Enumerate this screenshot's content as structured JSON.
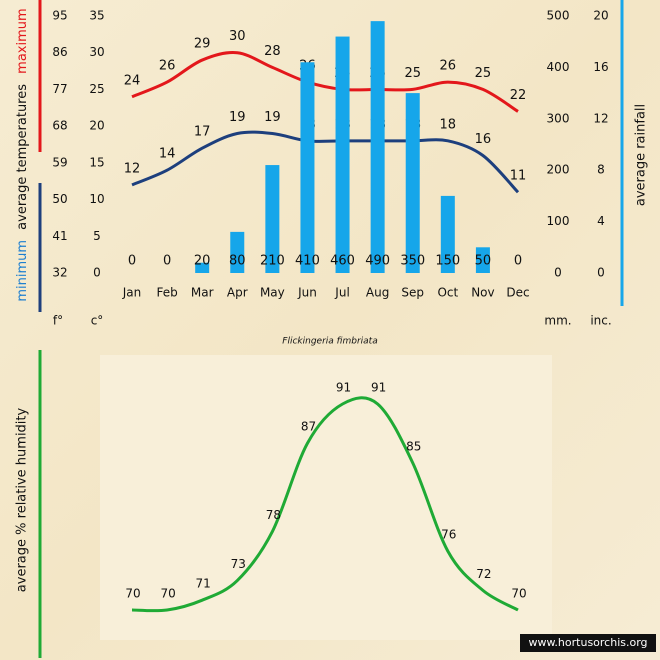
{
  "chart_data": [
    {
      "type": "climate",
      "title": "Flickingeria fimbriata",
      "ylabel": "average temperatures",
      "categories": [
        "Jan",
        "Feb",
        "Mar",
        "Apr",
        "May",
        "Jun",
        "Jul",
        "Aug",
        "Sep",
        "Oct",
        "Nov",
        "Dec"
      ],
      "series": [
        {
          "name": "maximum",
          "color": "#e3171b",
          "type": "line",
          "values": [
            24,
            26,
            29,
            30,
            28,
            26,
            25,
            25,
            25,
            26,
            25,
            22
          ]
        },
        {
          "name": "minimum",
          "color": "#1d3f7d",
          "type": "line",
          "values": [
            12,
            14,
            17,
            19,
            19,
            18,
            18,
            18,
            18,
            18,
            16,
            11
          ]
        },
        {
          "name": "average rainfall",
          "color": "#16a6ea",
          "type": "bar",
          "axis": "y2",
          "values": [
            0,
            0,
            20,
            80,
            210,
            410,
            460,
            490,
            350,
            150,
            50,
            0
          ]
        }
      ],
      "ylim": [
        0,
        35
      ],
      "yticks": [
        0,
        5,
        10,
        15,
        20,
        25,
        30,
        35
      ],
      "yunit": "c°",
      "y3lim": [
        32,
        95
      ],
      "y3ticks": [
        32,
        41,
        50,
        59,
        68,
        77,
        86,
        95
      ],
      "y3unit": "f°",
      "y2lim": [
        0,
        500
      ],
      "y2ticks": [
        0,
        100,
        200,
        300,
        400,
        500
      ],
      "y2unit": "mm.",
      "y4lim": [
        0,
        20
      ],
      "y4ticks": [
        0,
        4,
        8,
        12,
        16,
        20
      ],
      "y4unit": "inc."
    },
    {
      "type": "line",
      "ylabel": "average % relative humidity",
      "series": [
        {
          "color": "#1faa35",
          "values": [
            70,
            70,
            71,
            73,
            78,
            87,
            91,
            91,
            85,
            76,
            72,
            70
          ]
        }
      ],
      "footer": "www.hortusorchis.org"
    }
  ]
}
